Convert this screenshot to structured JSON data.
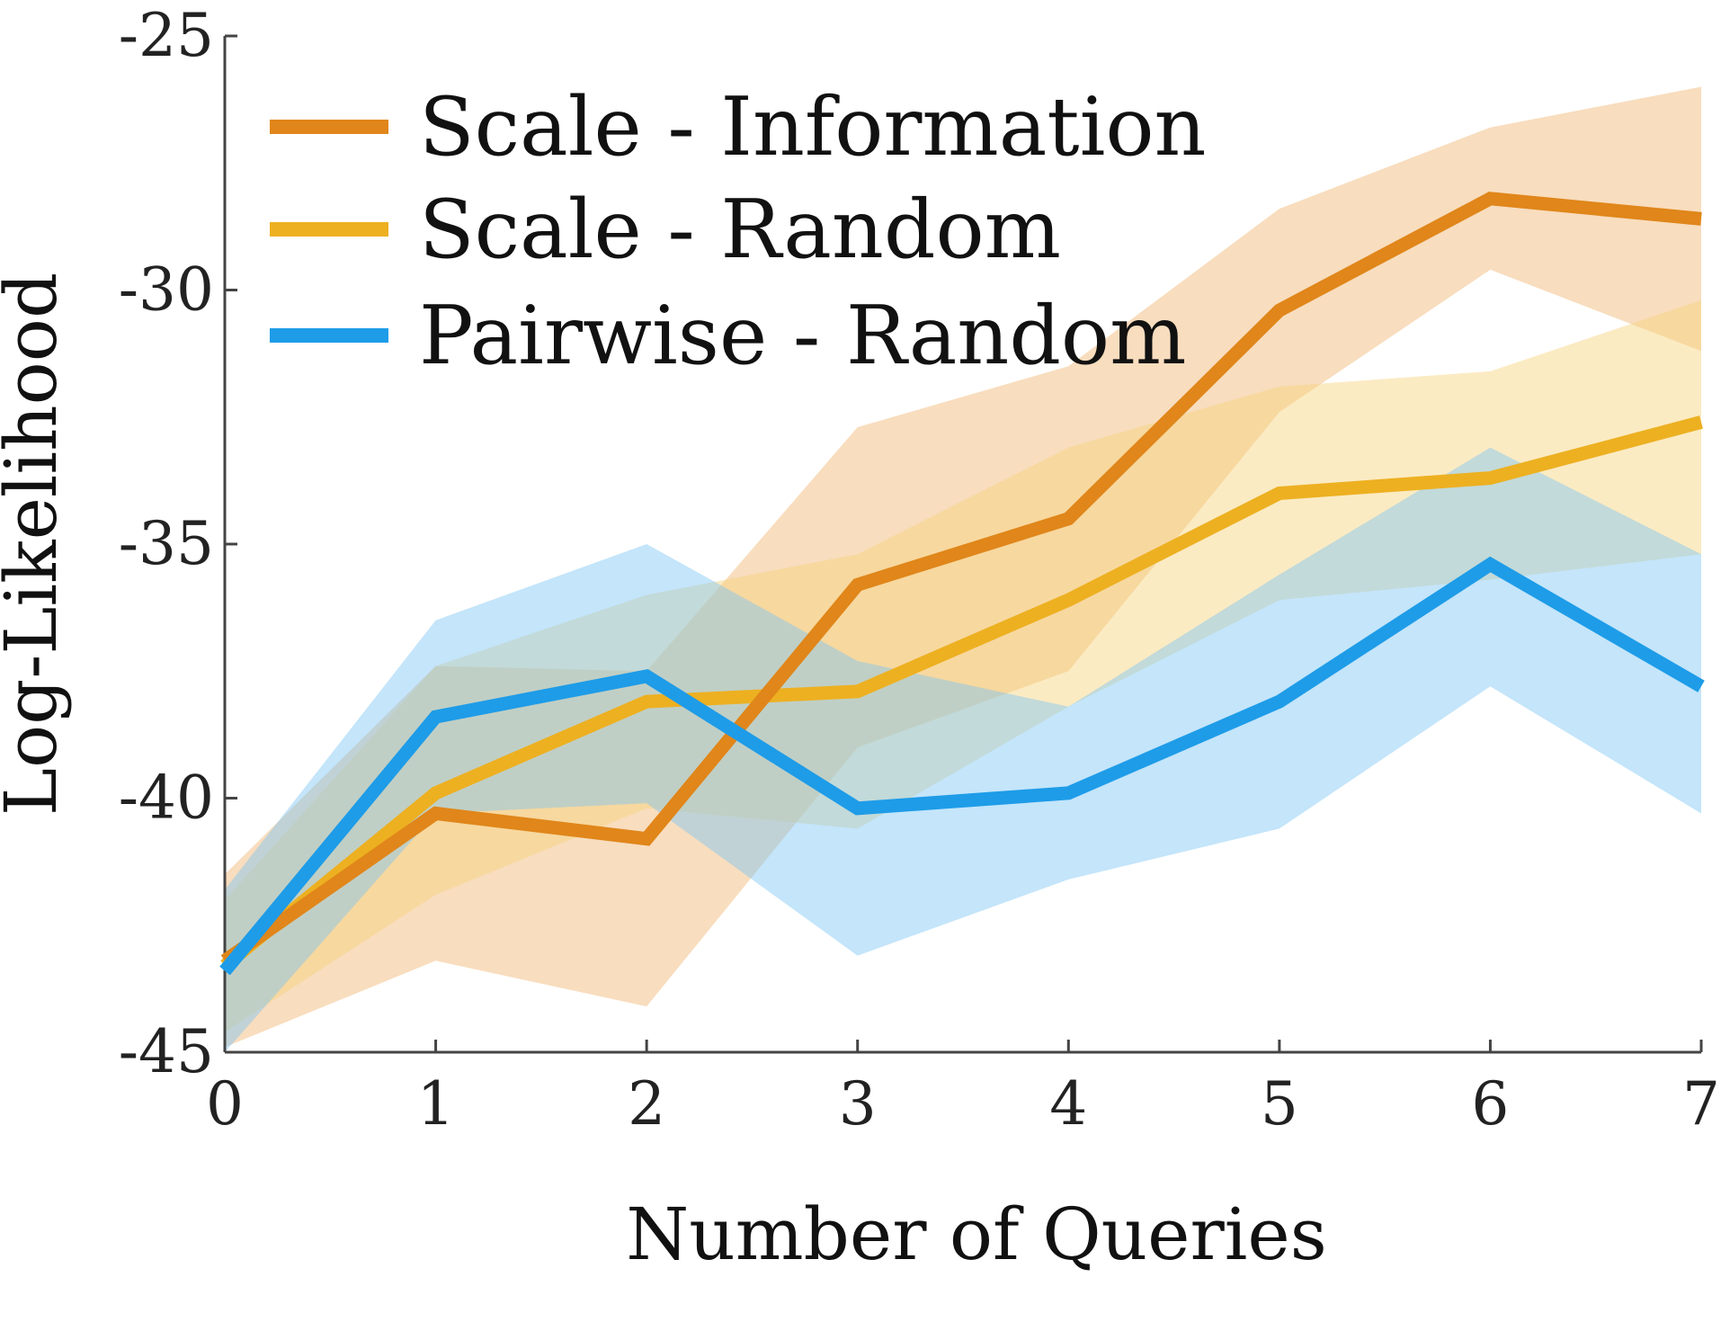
{
  "chart_data": {
    "type": "line",
    "title": "",
    "xlabel": "Number of Queries",
    "ylabel": "Log-Likelihood",
    "x": [
      0,
      1,
      2,
      3,
      4,
      5,
      6,
      7
    ],
    "xlim": [
      0,
      7
    ],
    "ylim": [
      -45,
      -25
    ],
    "xticks": [
      "0",
      "1",
      "2",
      "3",
      "4",
      "5",
      "6",
      "7"
    ],
    "yticks": [
      "-25",
      "-30",
      "-35",
      "-40",
      "-45"
    ],
    "ytick_values": [
      -25,
      -30,
      -35,
      -40,
      -45
    ],
    "grid": false,
    "legend_position": "top-left",
    "series": [
      {
        "name": "Scale - Information",
        "color": "#e0861a",
        "band_color": "#f0b46e",
        "values": [
          -43.2,
          -40.3,
          -40.8,
          -35.8,
          -34.5,
          -30.4,
          -28.2,
          -28.6
        ],
        "lower": [
          -44.9,
          -43.2,
          -44.1,
          -39.0,
          -37.5,
          -32.4,
          -29.6,
          -31.2
        ],
        "upper": [
          -41.5,
          -37.4,
          -37.5,
          -32.7,
          -31.5,
          -28.4,
          -26.8,
          -26.0
        ]
      },
      {
        "name": "Scale - Random",
        "color": "#edb021",
        "band_color": "#f7d27a",
        "values": [
          -43.3,
          -39.9,
          -38.1,
          -37.9,
          -36.1,
          -34.0,
          -33.7,
          -32.6
        ],
        "lower": [
          -44.6,
          -41.9,
          -40.2,
          -40.6,
          -38.2,
          -36.1,
          -35.7,
          -35.2
        ],
        "upper": [
          -42.0,
          -37.4,
          -36.0,
          -35.2,
          -33.1,
          -31.9,
          -31.6,
          -30.2
        ]
      },
      {
        "name": "Pairwise - Random",
        "color": "#1e9ce8",
        "band_color": "#7cc6f3",
        "values": [
          -43.4,
          -38.4,
          -37.6,
          -40.2,
          -39.9,
          -38.1,
          -35.4,
          -37.8
        ],
        "lower": [
          -45.0,
          -40.3,
          -40.1,
          -43.1,
          -41.6,
          -40.6,
          -37.8,
          -40.3
        ],
        "upper": [
          -41.8,
          -36.5,
          -35.0,
          -37.3,
          -38.2,
          -35.6,
          -33.1,
          -35.2
        ]
      }
    ]
  }
}
